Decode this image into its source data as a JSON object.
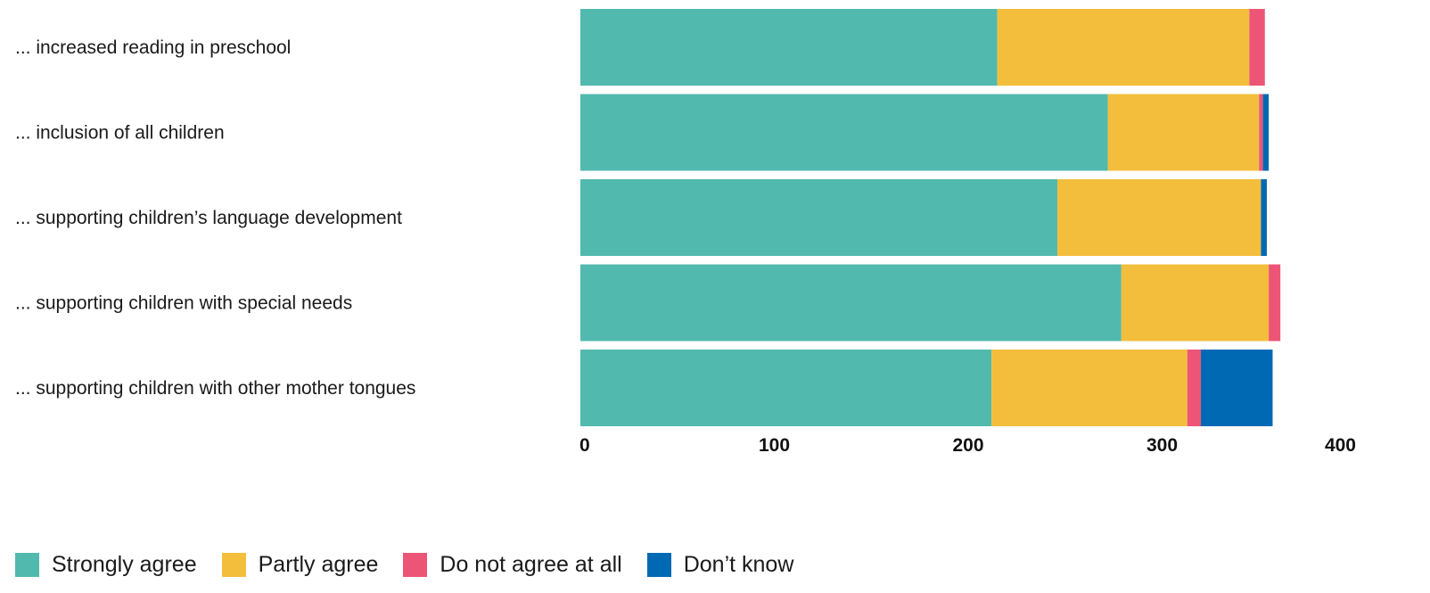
{
  "chart_data": {
    "type": "bar",
    "orientation": "horizontal",
    "stacked": true,
    "categories": [
      "... increased reading in preschool",
      "... inclusion of all children",
      "... supporting children’s language development",
      "... supporting children with special needs",
      "... supporting children with other mother tongues"
    ],
    "series": [
      {
        "name": "Strongly agree",
        "color": "#52b9ae",
        "values": [
          215,
          272,
          246,
          279,
          212
        ]
      },
      {
        "name": "Partly agree",
        "color": "#f3be3b",
        "values": [
          130,
          78,
          105,
          76,
          101
        ]
      },
      {
        "name": "Do not agree at all",
        "color": "#ec5576",
        "values": [
          8,
          2,
          0,
          6,
          7
        ]
      },
      {
        "name": "Don’t know",
        "color": "#0069b4",
        "values": [
          0,
          3,
          3,
          0,
          37
        ]
      }
    ],
    "xticks": [
      "0",
      "100",
      "200",
      "300",
      "400"
    ],
    "xlim": [
      0,
      400
    ],
    "title": "",
    "xlabel": "",
    "ylabel": "",
    "grid": false,
    "legend_position": "bottom-left"
  }
}
